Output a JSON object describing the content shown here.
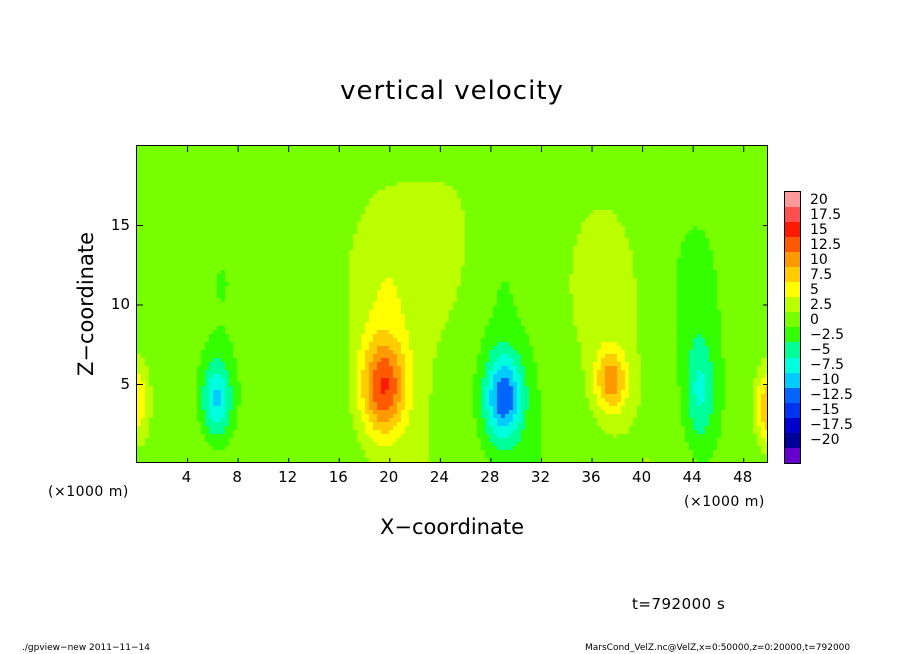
{
  "chart_data": {
    "type": "heatmap",
    "title": "vertical velocity",
    "xlabel": "X−coordinate",
    "ylabel": "Z−coordinate",
    "x_unit_label": "(×1000 m)",
    "y_unit_label": "(×1000 m)",
    "xlim": [
      0,
      50
    ],
    "ylim": [
      0,
      20
    ],
    "x_ticks": [
      "4",
      "8",
      "12",
      "16",
      "20",
      "24",
      "28",
      "32",
      "36",
      "40",
      "44",
      "48"
    ],
    "y_ticks": [
      "5",
      "10",
      "15"
    ],
    "x_tick_values": [
      4,
      8,
      12,
      16,
      20,
      24,
      28,
      32,
      36,
      40,
      44,
      48
    ],
    "y_tick_values": [
      5,
      10,
      15
    ],
    "features": [
      {
        "x": 6.3,
        "z": 4.0,
        "sx": 0.9,
        "sz": 1.8,
        "value": -9
      },
      {
        "x": 19.5,
        "z": 4.8,
        "sx": 1.3,
        "sz": 2.2,
        "value": 12
      },
      {
        "x": 29.0,
        "z": 4.2,
        "sx": 1.1,
        "sz": 2.0,
        "value": -12
      },
      {
        "x": 37.5,
        "z": 5.2,
        "sx": 0.9,
        "sz": 1.4,
        "value": 9
      },
      {
        "x": 44.5,
        "z": 4.5,
        "sx": 0.9,
        "sz": 2.5,
        "value": -6
      },
      {
        "x": 50.0,
        "z": 3.5,
        "sx": 0.8,
        "sz": 1.8,
        "value": 9
      },
      {
        "x": 0.0,
        "z": 4.0,
        "sx": 0.6,
        "sz": 1.6,
        "value": 6
      },
      {
        "x": 19.5,
        "z": 11.0,
        "sx": 2.2,
        "sz": 4.0,
        "value": 3
      },
      {
        "x": 36.5,
        "z": 11.0,
        "sx": 2.0,
        "sz": 4.0,
        "value": 2.5
      },
      {
        "x": 28.5,
        "z": 12.0,
        "sx": 1.6,
        "sz": 4.0,
        "value": -1.5
      },
      {
        "x": 44.0,
        "z": 11.0,
        "sx": 1.6,
        "sz": 4.0,
        "value": -2
      },
      {
        "x": 6.5,
        "z": 11.0,
        "sx": 1.8,
        "sz": 4.0,
        "value": -1.5
      },
      {
        "x": 25.0,
        "z": 14.0,
        "sx": 3.0,
        "sz": 4.0,
        "value": 1.5
      }
    ],
    "colorbar": {
      "labels": [
        "20",
        "17.5",
        "15",
        "12.5",
        "10",
        "7.5",
        "5",
        "2.5",
        "0",
        "−2.5",
        "−5",
        "−7.5",
        "−10",
        "−12.5",
        "−15",
        "−17.5",
        "−20"
      ],
      "colors": [
        "#ff9999",
        "#ff5050",
        "#ff1a00",
        "#ff5a00",
        "#ff9900",
        "#ffcc00",
        "#ffff00",
        "#bbff00",
        "#77ff00",
        "#33ff00",
        "#00ff99",
        "#00ffdd",
        "#00ccff",
        "#0066ff",
        "#0033ee",
        "#0000cc",
        "#000099",
        "#6600cc"
      ]
    }
  },
  "time_label": "t=792000 s",
  "footer": {
    "left": "./gpview−new  2011−11−14",
    "right": "MarsCond_VelZ.nc@VelZ,x=0:50000,z=0:20000,t=792000"
  }
}
